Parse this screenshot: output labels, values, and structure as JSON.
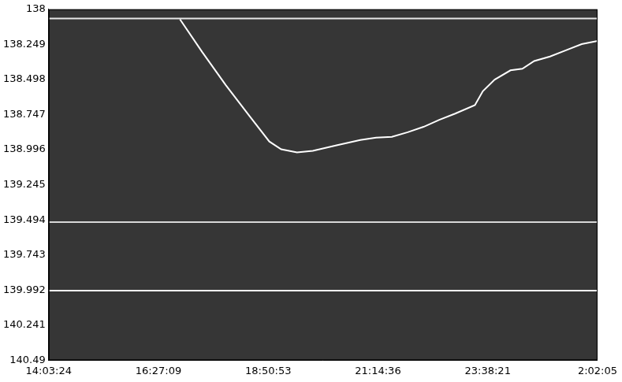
{
  "chart_data": {
    "type": "line",
    "grid": false,
    "xlim": [
      50604,
      93725
    ],
    "xticks": [
      {
        "value": 50604,
        "label": "14:03:24"
      },
      {
        "value": 59229,
        "label": "16:27:09"
      },
      {
        "value": 67853,
        "label": "18:50:53"
      },
      {
        "value": 76476,
        "label": "21:14:36"
      },
      {
        "value": 85101,
        "label": "23:38:21"
      },
      {
        "value": 93725,
        "label": "2:02:05"
      }
    ],
    "ylim": [
      140.49,
      138
    ],
    "yticks": [
      138,
      138.249,
      138.498,
      138.747,
      138.996,
      139.245,
      139.494,
      139.743,
      139.992,
      140.241,
      140.49
    ],
    "series": [
      {
        "color": "#ffffff",
        "x": [
          60918,
          62657,
          64521,
          66385,
          67938,
          68870,
          70113,
          71355,
          73219,
          75083,
          76326,
          77568,
          78811,
          80054,
          81296,
          82539,
          84092,
          84713,
          85645,
          86888,
          87820,
          88752,
          89994,
          91237,
          92480,
          93725
        ],
        "values": [
          138.071,
          138.302,
          138.538,
          138.757,
          138.938,
          138.993,
          139.015,
          139.004,
          138.965,
          138.927,
          138.911,
          138.905,
          138.872,
          138.834,
          138.784,
          138.74,
          138.68,
          138.581,
          138.499,
          138.433,
          138.422,
          138.367,
          138.335,
          138.291,
          138.247,
          138.225
        ]
      },
      {
        "color": "#e8e8e8",
        "x": [
          50604,
          93725
        ],
        "values": [
          138.066,
          138.066
        ]
      },
      {
        "color": "#d8d8d8",
        "x": [
          50604,
          93725
        ],
        "values": [
          139.51,
          139.51
        ]
      },
      {
        "color": "#ffffff",
        "x": [
          50604,
          93725
        ],
        "values": [
          139.996,
          139.996
        ]
      }
    ]
  }
}
